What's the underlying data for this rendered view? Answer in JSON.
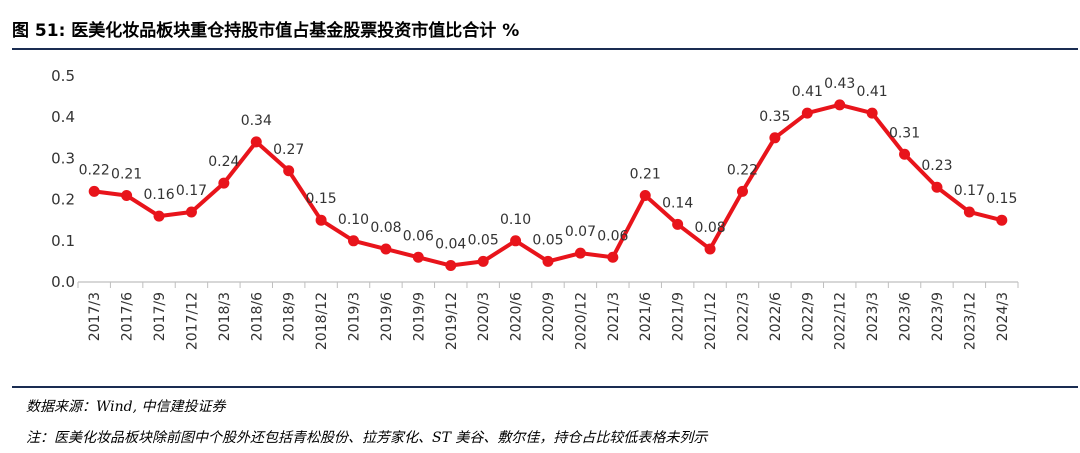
{
  "header": {
    "title": "图 51:  医美化妆品板块重仓持股市值占基金股票投资市值比合计  %"
  },
  "footer": {
    "source": "数据来源：Wind,  中信建投证券",
    "note": "注：医美化妆品板块除前图中个股外还包括青松股份、拉芳家化、ST 美谷、敷尔佳，持仓占比较低表格未列示"
  },
  "chart_data": {
    "type": "line",
    "categories": [
      "2017/3",
      "2017/6",
      "2017/9",
      "2017/12",
      "2018/3",
      "2018/6",
      "2018/9",
      "2018/12",
      "2019/3",
      "2019/6",
      "2019/9",
      "2019/12",
      "2020/3",
      "2020/6",
      "2020/9",
      "2020/12",
      "2021/3",
      "2021/6",
      "2021/9",
      "2021/12",
      "2022/3",
      "2022/6",
      "2022/9",
      "2022/12",
      "2023/3",
      "2023/6",
      "2023/9",
      "2023/12",
      "2024/3"
    ],
    "values": [
      0.22,
      0.21,
      0.16,
      0.17,
      0.24,
      0.34,
      0.27,
      0.15,
      0.1,
      0.08,
      0.06,
      0.04,
      0.05,
      0.1,
      0.05,
      0.07,
      0.06,
      0.21,
      0.14,
      0.08,
      0.22,
      0.35,
      0.41,
      0.43,
      0.41,
      0.31,
      0.23,
      0.17,
      0.15
    ],
    "value_labels": [
      "0.22",
      "0.21",
      "0.16",
      "0.17",
      "0.24",
      "0.34",
      "0.27",
      "0.15",
      "0.10",
      "0.08",
      "0.06",
      "0.04",
      "0.05",
      "0.10",
      "0.05",
      "0.07",
      "0.06",
      "0.21",
      "0.14",
      "0.08",
      "0.22",
      "0.35",
      "0.41",
      "0.43",
      "0.41",
      "0.31",
      "0.23",
      "0.17",
      "0.15"
    ],
    "ylim": [
      0.0,
      0.5
    ],
    "yticks": [
      "0.0",
      "0.1",
      "0.2",
      "0.3",
      "0.4",
      "0.5"
    ],
    "ytick_values": [
      0.0,
      0.1,
      0.2,
      0.3,
      0.4,
      0.5
    ],
    "grid": false,
    "line_color": "#e8141b",
    "axis_color": "#bfbfbf"
  }
}
